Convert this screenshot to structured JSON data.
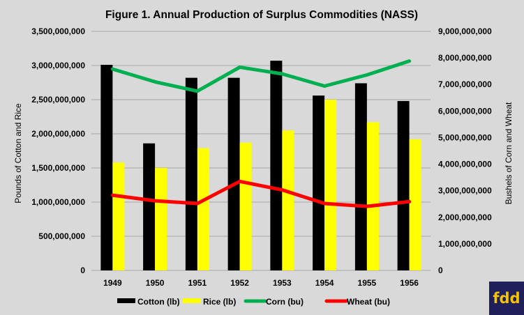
{
  "chart_data": {
    "type": "bar",
    "title": "Figure 1. Annual Production of Surplus Commodities (NASS)",
    "categories": [
      "1949",
      "1950",
      "1951",
      "1952",
      "1953",
      "1954",
      "1955",
      "1956"
    ],
    "ylabel_left": "Pounds of Cotton and Rice",
    "ylabel_right": "Bushels of Corn and Wheat",
    "ylim_left": [
      0,
      3500000000
    ],
    "ylim_right": [
      0,
      9000000000
    ],
    "yticks_left": [
      "0",
      "500,000,000",
      "1,000,000,000",
      "1,500,000,000",
      "2,000,000,000",
      "2,500,000,000",
      "3,000,000,000",
      "3,500,000,000"
    ],
    "yticks_right": [
      "0",
      "1,000,000,000",
      "2,000,000,000",
      "3,000,000,000",
      "4,000,000,000",
      "5,000,000,000",
      "6,000,000,000",
      "7,000,000,000",
      "8,000,000,000",
      "9,000,000,000"
    ],
    "legend_position": "bottom",
    "grid": true,
    "series": [
      {
        "name": "Cotton (lb)",
        "type": "bar",
        "axis": "left",
        "color": "#000000",
        "values": [
          3010000000,
          1860000000,
          2820000000,
          2820000000,
          3070000000,
          2560000000,
          2740000000,
          2480000000
        ]
      },
      {
        "name": "Rice (lb)",
        "type": "bar",
        "axis": "left",
        "color": "#ffff00",
        "values": [
          1580000000,
          1500000000,
          1790000000,
          1870000000,
          2050000000,
          2500000000,
          2170000000,
          1920000000
        ]
      },
      {
        "name": "Corn (bu)",
        "type": "line",
        "axis": "right",
        "color": "#00b050",
        "values": [
          7580000000,
          7100000000,
          6750000000,
          7650000000,
          7400000000,
          6940000000,
          7360000000,
          7880000000
        ]
      },
      {
        "name": "Wheat (bu)",
        "type": "line",
        "axis": "right",
        "color": "#ff0000",
        "values": [
          2830000000,
          2620000000,
          2520000000,
          3350000000,
          3030000000,
          2520000000,
          2410000000,
          2590000000
        ]
      }
    ]
  },
  "logo_text": "fdd"
}
